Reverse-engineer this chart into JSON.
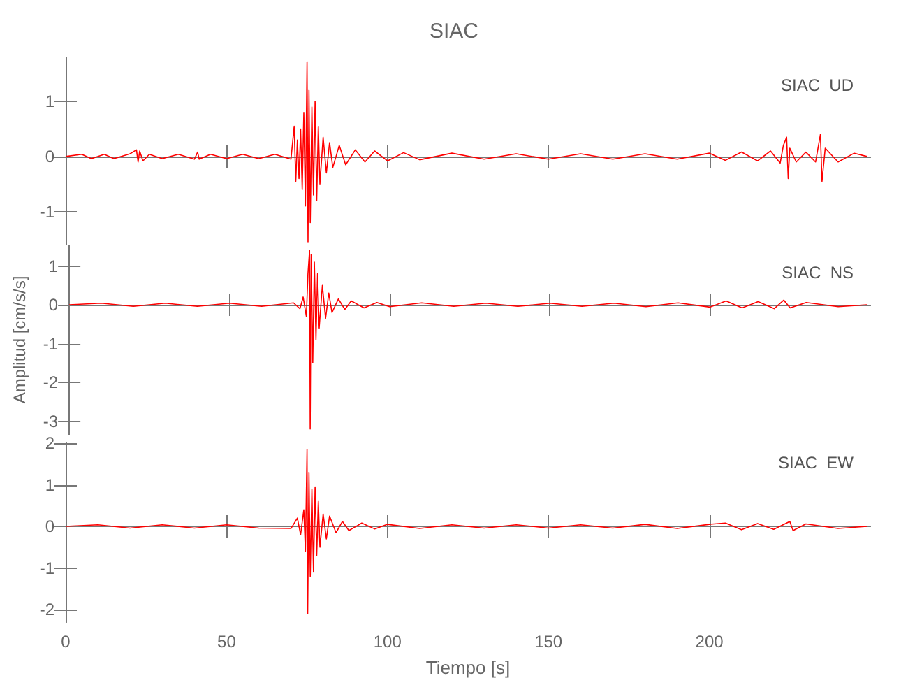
{
  "chart_data": [
    {
      "type": "line",
      "title": "SIAC",
      "annotations": [
        "SIAC  UD"
      ],
      "tick_labels": "y",
      "xlim": [
        0,
        250
      ],
      "xticks": [
        0,
        50,
        100,
        150,
        200
      ],
      "ylim": [
        -1.6,
        1.8
      ],
      "yticks": [
        -1,
        0,
        1
      ],
      "series": [
        {
          "color": "#ff0000",
          "x": [
            0,
            5,
            8,
            12,
            15,
            20,
            22,
            22.5,
            23,
            24,
            26,
            30,
            35,
            40,
            41,
            41.5,
            45,
            50,
            55,
            60,
            65,
            70,
            71,
            71.5,
            72,
            72.5,
            73,
            73.5,
            74,
            74.5,
            75,
            75.3,
            75.6,
            76,
            76.5,
            77,
            77.5,
            78,
            78.5,
            79,
            80,
            81,
            82,
            83,
            85,
            87,
            90,
            93,
            96,
            100,
            105,
            110,
            120,
            130,
            140,
            150,
            160,
            170,
            180,
            190,
            200,
            205,
            210,
            215,
            219,
            222,
            223,
            224,
            224.5,
            225,
            227,
            230,
            233,
            234.5,
            235,
            236,
            240,
            245,
            249
          ],
          "values": [
            0,
            0.04,
            -0.04,
            0.04,
            -0.04,
            0.05,
            0.12,
            -0.1,
            0.1,
            -0.08,
            0.04,
            -0.04,
            0.04,
            -0.05,
            0.08,
            -0.05,
            0.04,
            -0.04,
            0.04,
            -0.04,
            0.04,
            -0.05,
            0.55,
            -0.45,
            0.3,
            -0.4,
            0.5,
            -0.6,
            0.8,
            -0.9,
            1.72,
            -1.55,
            1.2,
            -1.2,
            0.9,
            -0.7,
            1.0,
            -0.8,
            0.55,
            -0.5,
            0.35,
            -0.3,
            0.25,
            -0.2,
            0.2,
            -0.15,
            0.12,
            -0.1,
            0.1,
            -0.08,
            0.07,
            -0.06,
            0.06,
            -0.05,
            0.05,
            -0.05,
            0.05,
            -0.05,
            0.05,
            -0.05,
            0.06,
            -0.07,
            0.08,
            -0.08,
            0.1,
            -0.12,
            0.2,
            0.35,
            -0.4,
            0.15,
            -0.1,
            0.08,
            -0.1,
            0.4,
            -0.45,
            0.15,
            -0.1,
            0.06,
            0
          ]
        }
      ]
    },
    {
      "type": "line",
      "ylabel": "Amplitud [cm/s/s]",
      "annotations": [
        "SIAC  NS"
      ],
      "tick_labels": "y",
      "xlim": [
        0,
        250
      ],
      "xticks": [
        0,
        50,
        100,
        150,
        200
      ],
      "ylim": [
        -3.35,
        1.55
      ],
      "yticks": [
        -3,
        -2,
        -1,
        0,
        1
      ],
      "series": [
        {
          "color": "#ff0000",
          "x": [
            0,
            10,
            20,
            30,
            40,
            50,
            60,
            70,
            72,
            73,
            74,
            74.5,
            75,
            75.2,
            75.5,
            76,
            76.5,
            77,
            77.5,
            78,
            79,
            80,
            81,
            82,
            84,
            86,
            88,
            92,
            96,
            100,
            110,
            120,
            130,
            140,
            150,
            160,
            170,
            180,
            190,
            200,
            205,
            210,
            215,
            220,
            223,
            225,
            230,
            240,
            249
          ],
          "values": [
            0,
            0.04,
            -0.04,
            0.04,
            -0.04,
            0.04,
            -0.04,
            0.05,
            -0.1,
            0.2,
            -0.3,
            0.8,
            1.4,
            -3.2,
            1.3,
            -1.5,
            1.1,
            -0.9,
            0.8,
            -0.6,
            0.5,
            -0.35,
            0.3,
            -0.2,
            0.15,
            -0.12,
            0.1,
            -0.08,
            0.06,
            -0.05,
            0.05,
            -0.04,
            0.04,
            -0.04,
            0.04,
            -0.04,
            0.04,
            -0.05,
            0.05,
            -0.06,
            0.1,
            -0.08,
            0.08,
            -0.1,
            0.12,
            -0.08,
            0.06,
            -0.05,
            0
          ]
        }
      ]
    },
    {
      "type": "line",
      "xlabel": "Tiempo [s]",
      "annotations": [
        "SIAC  EW"
      ],
      "xlim": [
        0,
        250
      ],
      "xticks": [
        0,
        50,
        100,
        150,
        200
      ],
      "ylim": [
        -2.3,
        2
      ],
      "yticks": [
        -2,
        -1,
        0,
        1,
        2
      ],
      "series": [
        {
          "color": "#ff0000",
          "x": [
            0,
            10,
            20,
            30,
            40,
            50,
            60,
            70,
            72,
            73,
            74,
            74.5,
            75,
            75.2,
            75.6,
            76,
            76.5,
            77,
            77.5,
            78,
            78.5,
            79,
            80,
            81,
            82,
            84,
            86,
            88,
            92,
            96,
            100,
            110,
            120,
            130,
            140,
            150,
            160,
            170,
            180,
            190,
            200,
            205,
            210,
            215,
            220,
            225,
            226,
            230,
            240,
            249
          ],
          "values": [
            0,
            0.04,
            -0.04,
            0.04,
            -0.04,
            0.04,
            -0.04,
            -0.05,
            0.2,
            -0.2,
            0.4,
            -0.6,
            1.85,
            -2.1,
            1.3,
            -1.2,
            0.9,
            -1.1,
            0.95,
            -0.7,
            0.6,
            -0.5,
            0.3,
            -0.3,
            0.25,
            -0.15,
            0.12,
            -0.1,
            0.08,
            -0.06,
            0.05,
            -0.05,
            0.04,
            -0.04,
            0.04,
            -0.04,
            0.04,
            -0.04,
            0.05,
            -0.05,
            0.05,
            0.08,
            -0.08,
            0.07,
            -0.07,
            0.12,
            -0.1,
            0.06,
            -0.05,
            0
          ]
        }
      ]
    }
  ]
}
